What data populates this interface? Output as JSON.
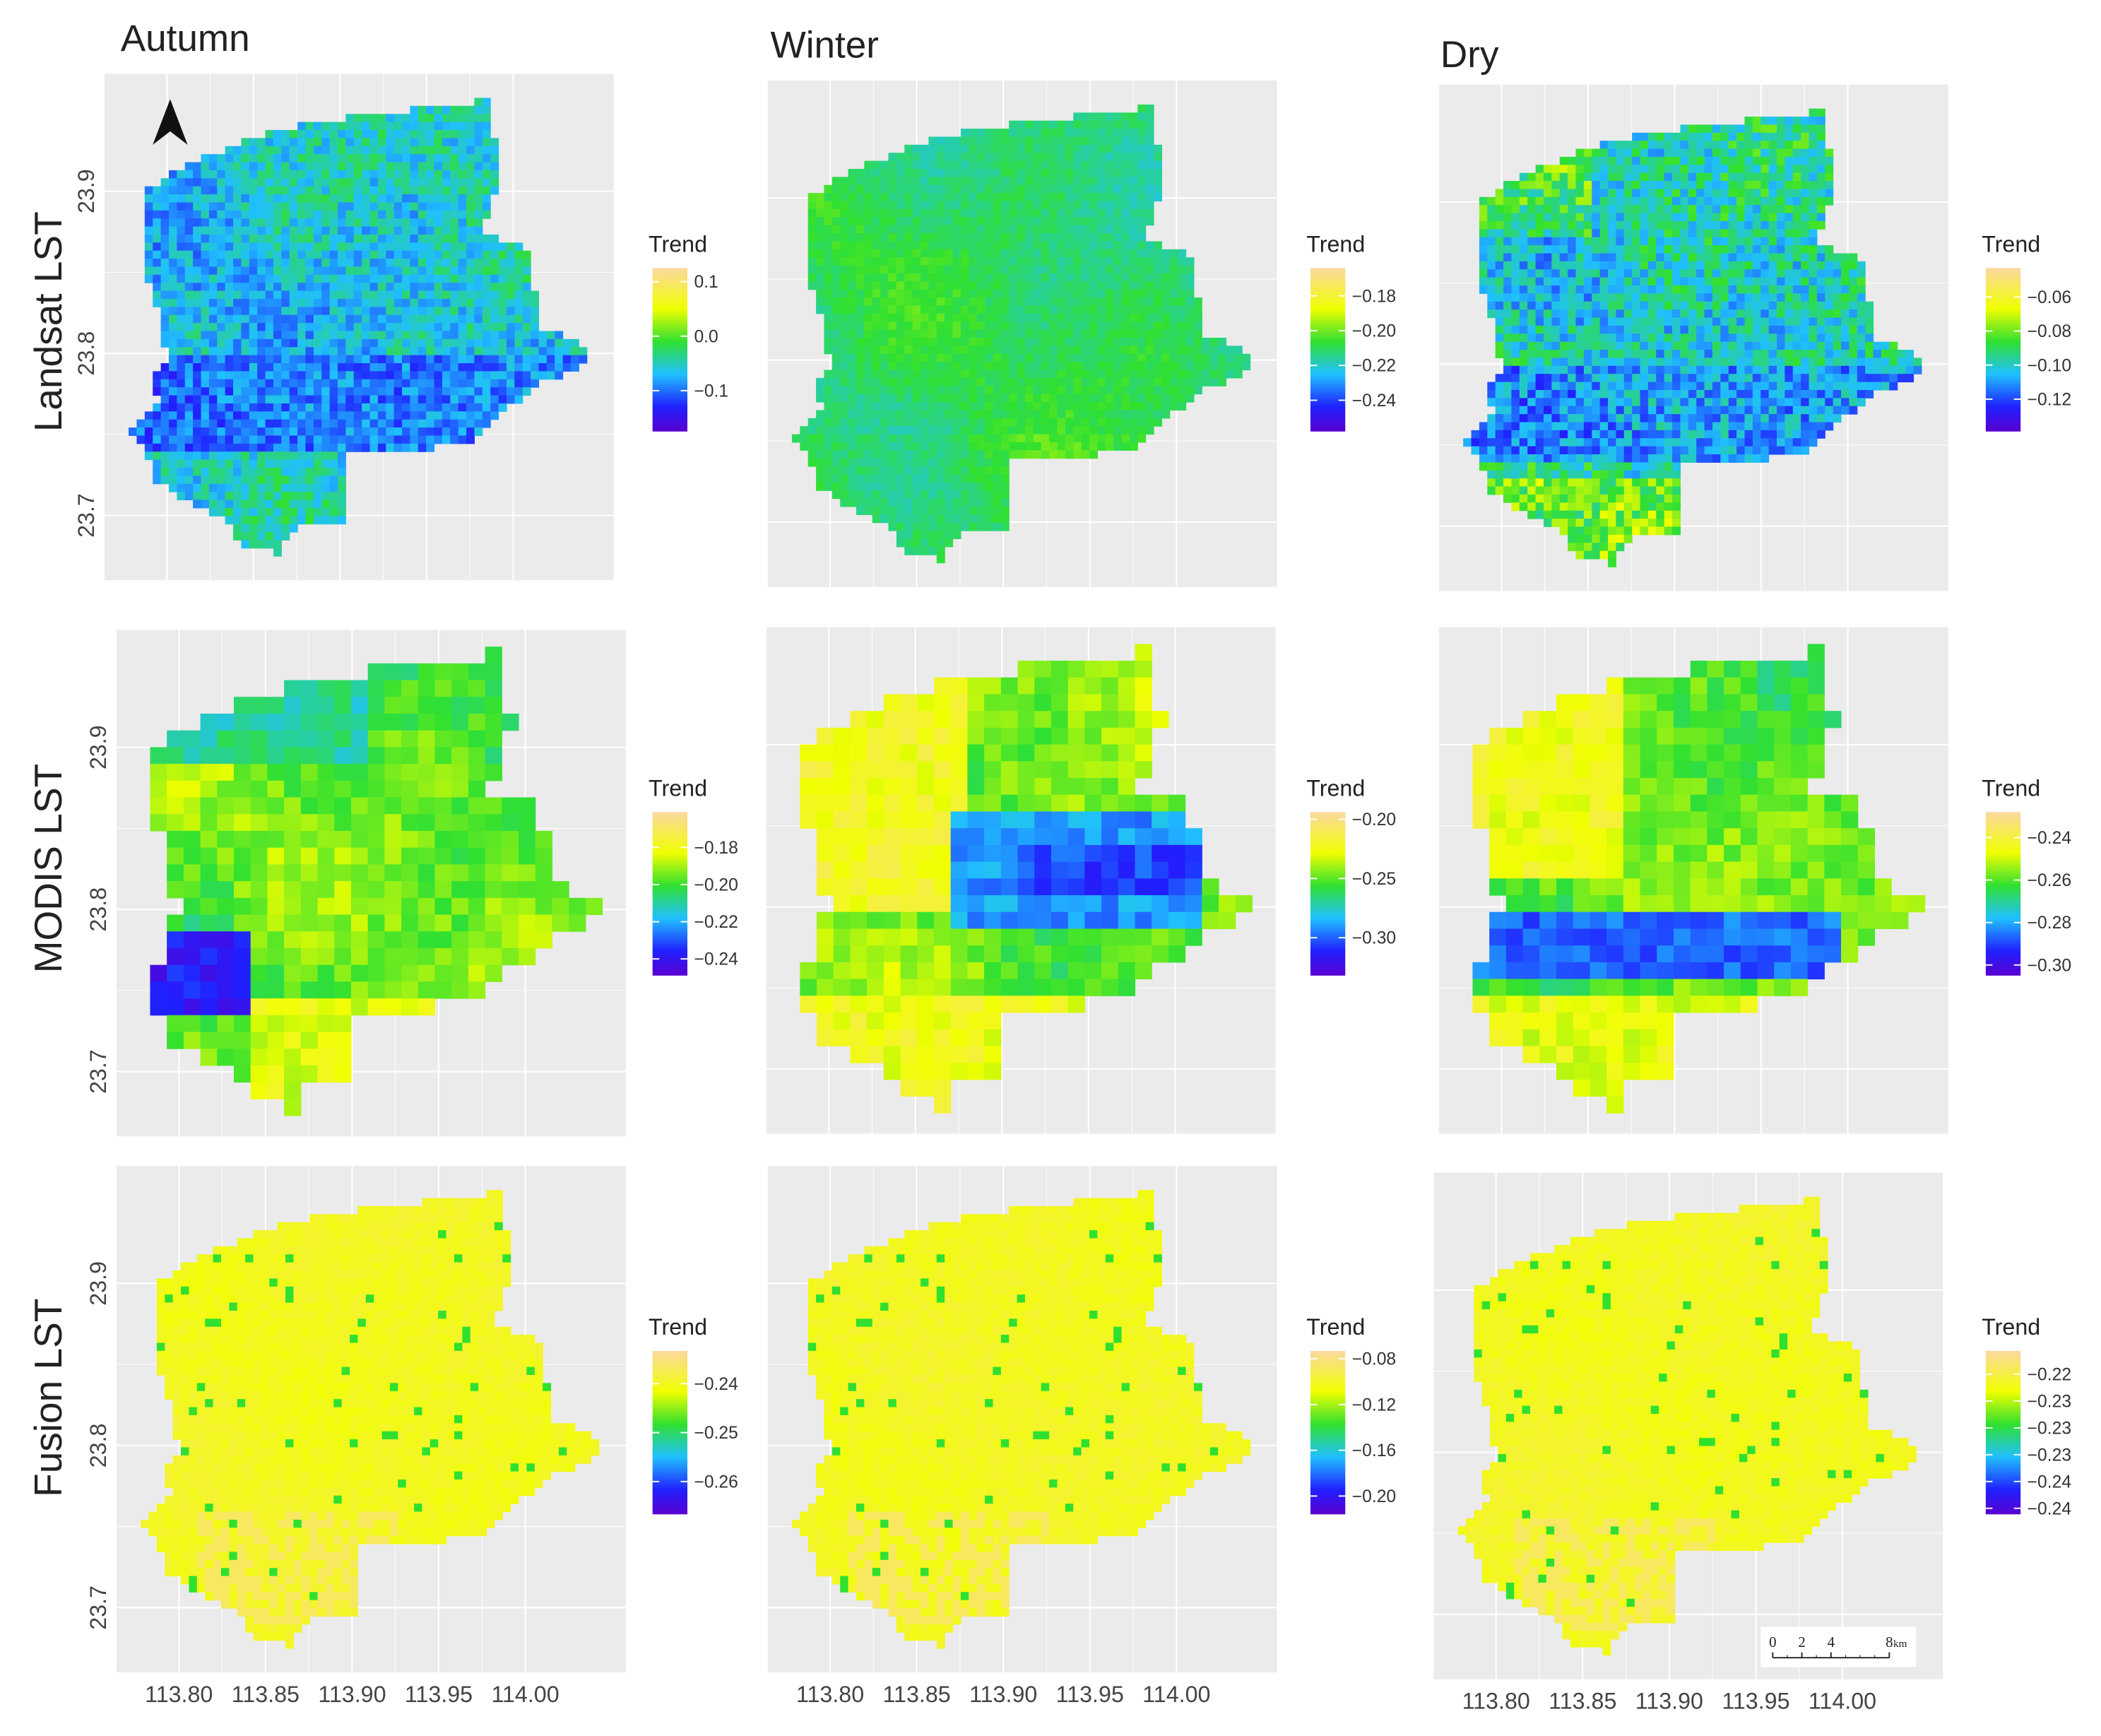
{
  "columns": [
    "Autumn",
    "Winter",
    "Dry"
  ],
  "rows": [
    "Landsat LST",
    "MODIS LST",
    "Fusion LST"
  ],
  "map": {
    "xlim": [
      113.764,
      114.058
    ],
    "ylim": [
      23.66,
      23.9725
    ],
    "xticks": [
      {
        "value": 113.8,
        "label": "113.80"
      },
      {
        "value": 113.85,
        "label": "113.85"
      },
      {
        "value": 113.9,
        "label": "113.90"
      },
      {
        "value": 113.95,
        "label": "113.95"
      },
      {
        "value": 114,
        "label": "114.00"
      }
    ],
    "yticks": [
      23.7,
      23.8,
      23.9
    ]
  },
  "legends": [
    [
      {
        "title": "Trend",
        "range": [
          -0.175,
          0.125
        ],
        "ticks": [
          {
            "value": 0.1,
            "label": "0.1"
          },
          {
            "value": 0,
            "label": "0.0"
          },
          {
            "value": -0.1,
            "label": "−0.1"
          }
        ]
      },
      {
        "title": "Trend",
        "range": [
          -0.258,
          -0.164
        ],
        "ticks": [
          {
            "value": -0.18,
            "label": "−0.18"
          },
          {
            "value": -0.2,
            "label": "−0.20"
          },
          {
            "value": -0.22,
            "label": "−0.22"
          },
          {
            "value": -0.24,
            "label": "−0.24"
          }
        ]
      },
      {
        "title": "Trend",
        "range": [
          -0.139,
          -0.043
        ],
        "ticks": [
          {
            "value": -0.06,
            "label": "−0.06"
          },
          {
            "value": -0.08,
            "label": "−0.08"
          },
          {
            "value": -0.1,
            "label": "−0.10"
          },
          {
            "value": -0.12,
            "label": "−0.12"
          }
        ]
      }
    ],
    [
      {
        "title": "Trend",
        "range": [
          -0.249,
          -0.161
        ],
        "ticks": [
          {
            "value": -0.18,
            "label": "−0.18"
          },
          {
            "value": -0.2,
            "label": "−0.20"
          },
          {
            "value": -0.22,
            "label": "−0.22"
          },
          {
            "value": -0.24,
            "label": "−0.24"
          }
        ]
      },
      {
        "title": "Trend",
        "range": [
          -0.332,
          -0.194
        ],
        "ticks": [
          {
            "value": -0.2,
            "label": "−0.20"
          },
          {
            "value": -0.25,
            "label": "−0.25"
          },
          {
            "value": -0.3,
            "label": "−0.30"
          }
        ]
      },
      {
        "title": "Trend",
        "range": [
          -0.305,
          -0.228
        ],
        "ticks": [
          {
            "value": -0.24,
            "label": "−0.24"
          },
          {
            "value": -0.26,
            "label": "−0.26"
          },
          {
            "value": -0.28,
            "label": "−0.28"
          },
          {
            "value": -0.3,
            "label": "−0.30"
          }
        ]
      }
    ],
    [
      {
        "title": "Trend",
        "range": [
          -0.2667,
          -0.2333
        ],
        "ticks": [
          {
            "value": -0.24,
            "label": "−0.24"
          },
          {
            "value": -0.25,
            "label": "−0.25"
          },
          {
            "value": -0.26,
            "label": "−0.26"
          }
        ]
      },
      {
        "title": "Trend",
        "range": [
          -0.216,
          -0.0731
        ],
        "ticks": [
          {
            "value": -0.08,
            "label": "−0.08"
          },
          {
            "value": -0.12,
            "label": "−0.12"
          },
          {
            "value": -0.16,
            "label": "−0.16"
          },
          {
            "value": -0.2,
            "label": "−0.20"
          }
        ]
      },
      {
        "title": "Trend",
        "range": [
          -0.2429,
          -0.2185
        ],
        "ticks": [
          {
            "value": -0.222,
            "label": "−0.22"
          },
          {
            "value": -0.226,
            "label": "−0.23"
          },
          {
            "value": -0.23,
            "label": "−0.23"
          },
          {
            "value": -0.234,
            "label": "−0.23"
          },
          {
            "value": -0.238,
            "label": "−0.24"
          },
          {
            "value": -0.242,
            "label": "−0.24"
          }
        ]
      }
    ]
  ],
  "scale_bar": {
    "ticks": [
      0,
      2,
      4,
      8
    ],
    "unit": "km"
  }
}
